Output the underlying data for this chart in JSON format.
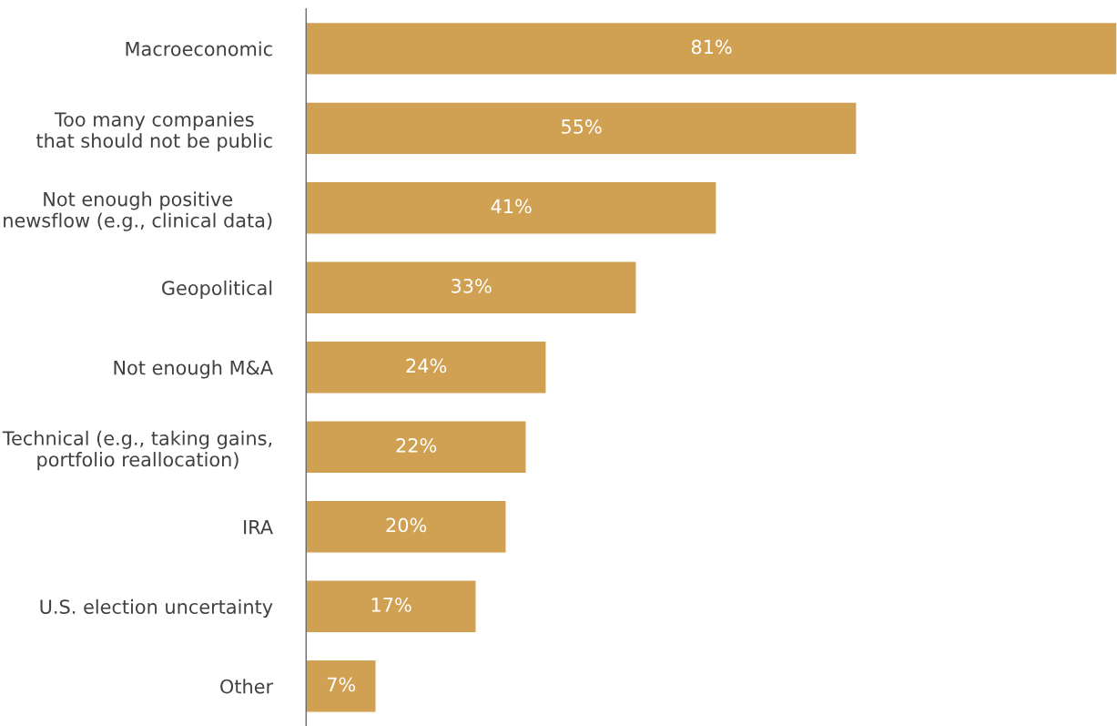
{
  "chart_data": {
    "type": "bar",
    "orientation": "horizontal",
    "categories": [
      "Macroeconomic",
      "Too many companies\nthat should not be public",
      "Not enough positive\nnewsflow (e.g., clinical data)",
      "Geopolitical",
      "Not enough M&A",
      "Technical (e.g., taking gains,\nportfolio reallocation)",
      "IRA",
      "U.S. election uncertainty",
      "Other"
    ],
    "values": [
      81,
      55,
      41,
      33,
      24,
      22,
      20,
      17,
      7
    ],
    "color": "#d0a152",
    "xlim": [
      0,
      81
    ],
    "value_labels": [
      "81%",
      "55%",
      "41%",
      "33%",
      "24%",
      "22%",
      "20%",
      "17%",
      "7%"
    ],
    "tick_labels": "y",
    "grid": false,
    "legend": false
  }
}
